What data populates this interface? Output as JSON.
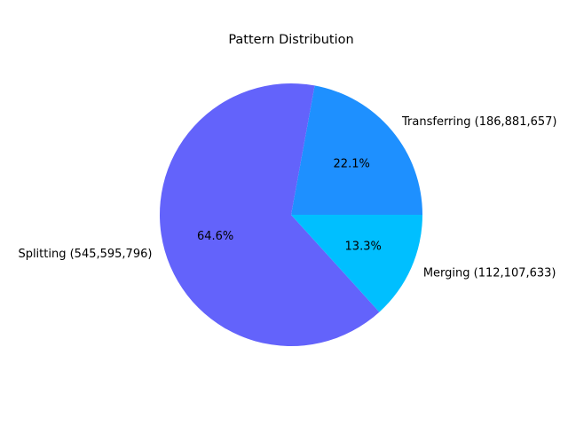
{
  "chart_data": {
    "type": "pie",
    "title": "Pattern Distribution",
    "start_angle_deg": 0,
    "direction": "counterclockwise",
    "slices": [
      {
        "label": "Transferring (186,881,657)",
        "value": 186881657,
        "percent_label": "22.1%",
        "color": "#1e90ff"
      },
      {
        "label": "Splitting (545,595,796)",
        "value": 545595796,
        "percent_label": "64.6%",
        "color": "#6363fb"
      },
      {
        "label": "Merging (112,107,633)",
        "value": 112107633,
        "percent_label": "13.3%",
        "color": "#00bfff"
      }
    ]
  }
}
